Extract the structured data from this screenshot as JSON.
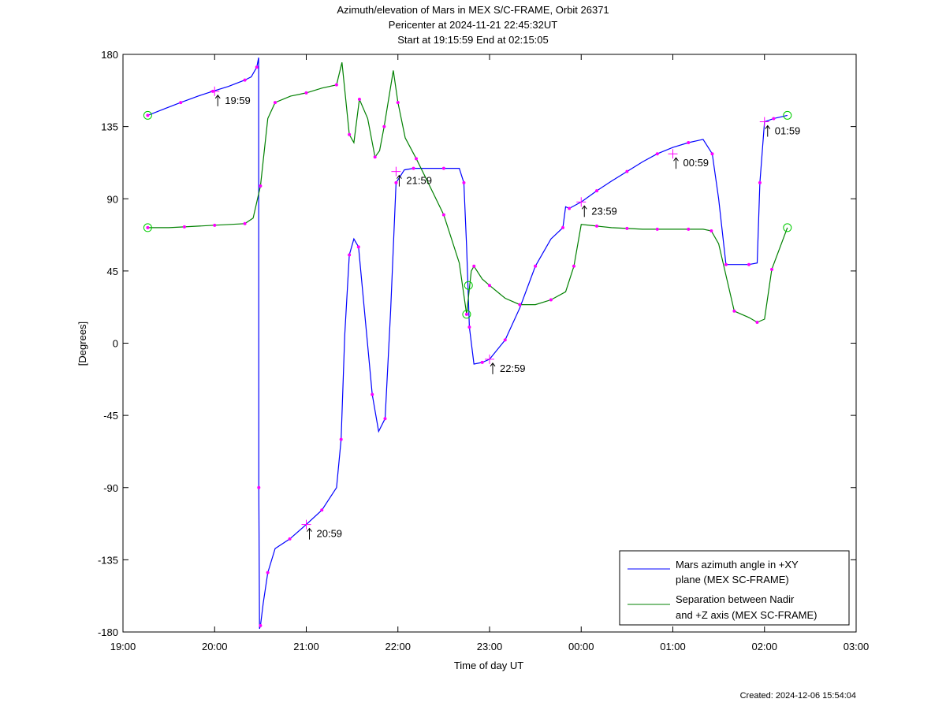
{
  "chart_data": {
    "type": "line",
    "title": "Azimuth/elevation of Mars in MEX S/C-FRAME,  Orbit 26371",
    "subtitle_1": "Pericenter at 2024-11-21 22:45:32UT",
    "subtitle_2": "Start at 19:15:59 End at 02:15:05",
    "xlabel": "Time of day UT",
    "ylabel": "[Degrees]",
    "xlim": [
      19,
      27
    ],
    "ylim": [
      -180,
      180
    ],
    "x_ticks": [
      19,
      20,
      21,
      22,
      23,
      24,
      25,
      26,
      27
    ],
    "x_tick_labels": [
      "19:00",
      "20:00",
      "21:00",
      "22:00",
      "23:00",
      "00:00",
      "01:00",
      "02:00",
      "03:00"
    ],
    "y_ticks": [
      -180,
      -135,
      -90,
      -45,
      0,
      45,
      90,
      135,
      180
    ],
    "y_tick_labels": [
      "-180",
      "-135",
      "-90",
      "-45",
      "0",
      "45",
      "90",
      "135",
      "180"
    ],
    "grid": false,
    "legend_position": "bottom-right",
    "series": [
      {
        "name_line1": "Mars azimuth angle in +XY",
        "name_line2": "plane (MEX SC-FRAME)",
        "color": "#0000ff",
        "x": [
          19.27,
          19.45,
          19.63,
          19.82,
          19.98,
          20.15,
          20.33,
          20.4,
          20.46,
          20.48,
          20.482,
          20.49,
          20.5,
          20.53,
          20.58,
          20.66,
          20.82,
          21.0,
          21.17,
          21.33,
          21.38,
          21.42,
          21.47,
          21.52,
          21.57,
          21.66,
          21.72,
          21.79,
          21.86,
          21.92,
          21.98,
          22.07,
          22.17,
          22.33,
          22.5,
          22.67,
          22.72,
          22.75,
          22.78,
          22.83,
          22.92,
          23.0,
          23.17,
          23.33,
          23.5,
          23.67,
          23.8,
          23.83,
          23.87,
          24.0,
          24.17,
          24.33,
          24.5,
          24.67,
          24.83,
          25.0,
          25.17,
          25.33,
          25.43,
          25.5,
          25.58,
          25.67,
          25.83,
          25.92,
          25.95,
          26.0,
          26.1,
          26.25
        ],
        "y": [
          142,
          146,
          150,
          154,
          157,
          160,
          164,
          166,
          172,
          178,
          -90,
          -178,
          -176,
          -162,
          -143,
          -128,
          -122,
          -113,
          -104,
          -90,
          -60,
          5,
          55,
          65,
          60,
          5,
          -32,
          -55,
          -47,
          20,
          100,
          108,
          109,
          109,
          109,
          109,
          100,
          60,
          10,
          -13,
          -12,
          -10,
          2,
          22,
          48,
          65,
          72,
          85,
          84,
          88,
          95,
          101,
          107,
          113,
          118,
          122,
          125,
          127,
          118,
          90,
          49,
          49,
          49,
          50,
          100,
          138,
          140,
          142
        ]
      },
      {
        "name_line1": "Separation between Nadir",
        "name_line2": "and +Z axis (MEX SC-FRAME)",
        "color": "#008000",
        "x": [
          19.27,
          19.5,
          19.67,
          19.83,
          20.0,
          20.17,
          20.33,
          20.42,
          20.5,
          20.58,
          20.66,
          20.83,
          21.0,
          21.17,
          21.33,
          21.39,
          21.47,
          21.52,
          21.58,
          21.67,
          21.75,
          21.8,
          21.85,
          21.95,
          22.0,
          22.08,
          22.2,
          22.33,
          22.5,
          22.67,
          22.75,
          22.8,
          22.83,
          22.92,
          23.0,
          23.17,
          23.33,
          23.5,
          23.67,
          23.83,
          23.92,
          24.0,
          24.17,
          24.33,
          24.5,
          24.67,
          24.83,
          25.0,
          25.17,
          25.33,
          25.42,
          25.5,
          25.67,
          25.83,
          25.92,
          26.0,
          26.08,
          26.25
        ],
        "y": [
          72,
          72,
          72.5,
          73,
          73.5,
          74,
          74.5,
          78,
          98,
          140,
          150,
          154,
          156,
          159,
          161,
          175,
          130,
          125,
          152,
          140,
          116,
          120,
          135,
          170,
          150,
          128,
          115,
          100,
          80,
          50,
          18,
          45,
          48,
          40,
          36,
          28,
          24,
          24,
          27,
          32,
          48,
          74,
          73,
          72,
          71.5,
          71,
          71,
          71,
          71,
          71,
          70,
          62,
          20,
          16,
          13,
          15,
          46,
          72
        ]
      }
    ],
    "orbit_markers": [
      {
        "label": "19:59",
        "x": 20.0,
        "y": 157
      },
      {
        "label": "20:59",
        "x": 21.0,
        "y": -113
      },
      {
        "label": "21:59",
        "x": 21.98,
        "y": 107
      },
      {
        "label": "22:59",
        "x": 23.0,
        "y": -10
      },
      {
        "label": "23:59",
        "x": 24.0,
        "y": 88
      },
      {
        "label": "00:59",
        "x": 25.0,
        "y": 118
      },
      {
        "label": "01:59",
        "x": 26.0,
        "y": 138
      }
    ],
    "footer": "Created: 2024-12-06 15:54:04"
  }
}
